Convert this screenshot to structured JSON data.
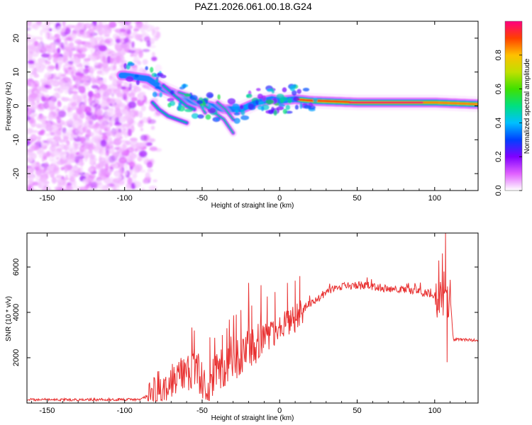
{
  "title": "PAZ1.2026.061.00.18.G24",
  "chart_data": [
    {
      "type": "heatmap",
      "title": "PAZ1.2026.061.00.18.G24",
      "xlabel": "Height of straight line (km)",
      "ylabel": "Frequency (Hz)",
      "xlim": [
        -163,
        128
      ],
      "ylim": [
        -25,
        25
      ],
      "xticks": [
        "-150",
        "-100",
        "-50",
        "0",
        "50",
        "100"
      ],
      "xtick_values": [
        -150,
        -100,
        -50,
        0,
        50,
        100
      ],
      "yticks": [
        "-20",
        "-10",
        "0",
        "10",
        "20"
      ],
      "ytick_values": [
        -20,
        -10,
        0,
        10,
        20
      ],
      "ridge_x": [
        -100,
        -85,
        -75,
        -65,
        -55,
        -45,
        -35,
        -25,
        -15,
        -5,
        0,
        10,
        20,
        50,
        100,
        128
      ],
      "ridge_y": [
        9,
        8,
        5,
        3,
        1,
        0,
        -1,
        -1,
        1,
        2,
        1.5,
        2,
        1.5,
        1,
        1,
        0.5
      ],
      "colorbar": {
        "label": "Normalized spectral amplitude",
        "range": [
          0,
          1
        ],
        "ticks": [
          "0.0",
          "0.2",
          "0.4",
          "0.6",
          "0.8"
        ],
        "tick_values": [
          0,
          0.2,
          0.4,
          0.6,
          0.8
        ],
        "colors": [
          "#ffffff",
          "#e060ff",
          "#8000ff",
          "#0040ff",
          "#00c0ff",
          "#00e080",
          "#40e000",
          "#c0e000",
          "#ffc000",
          "#ff4000",
          "#ff0080"
        ]
      }
    },
    {
      "type": "line",
      "xlabel": "Height of straight line (km)",
      "ylabel": "SNR (10 * v/v)",
      "xlim": [
        -163,
        128
      ],
      "ylim": [
        0,
        7500
      ],
      "xticks": [
        "-150",
        "-100",
        "-50",
        "0",
        "50",
        "100"
      ],
      "xtick_values": [
        -150,
        -100,
        -50,
        0,
        50,
        100
      ],
      "yticks": [
        "2000",
        "4000",
        "6000"
      ],
      "ytick_values": [
        2000,
        4000,
        6000
      ],
      "color": "#e83030",
      "x": [
        -163,
        -150,
        -100,
        -90,
        -80,
        -75,
        -70,
        -60,
        -55,
        -50,
        -45,
        -40,
        -35,
        -30,
        -25,
        -20,
        -15,
        -10,
        -5,
        0,
        5,
        10,
        15,
        20,
        25,
        30,
        35,
        40,
        50,
        60,
        70,
        80,
        90,
        95,
        100,
        105,
        108,
        110,
        112,
        120,
        128
      ],
      "y": [
        150,
        150,
        150,
        150,
        500,
        600,
        900,
        1300,
        1600,
        1100,
        700,
        1600,
        1400,
        2000,
        1800,
        2600,
        2400,
        2900,
        3000,
        3200,
        3600,
        3700,
        4100,
        4400,
        4600,
        4900,
        5100,
        5150,
        5200,
        5150,
        5050,
        5000,
        4900,
        4850,
        4700,
        4600,
        4400,
        4650,
        2800,
        2800,
        2750
      ],
      "peaks_x": [
        -55,
        -45,
        -37,
        -34,
        -28,
        -25,
        -20,
        -18,
        -12,
        -8,
        -3,
        5,
        10,
        13,
        105,
        106,
        107,
        108
      ],
      "peaks_y": [
        3200,
        2900,
        3000,
        3300,
        3900,
        4100,
        5300,
        4300,
        5200,
        4700,
        4900,
        5300,
        5400,
        5600,
        6600,
        5800,
        7500,
        1800
      ]
    }
  ]
}
